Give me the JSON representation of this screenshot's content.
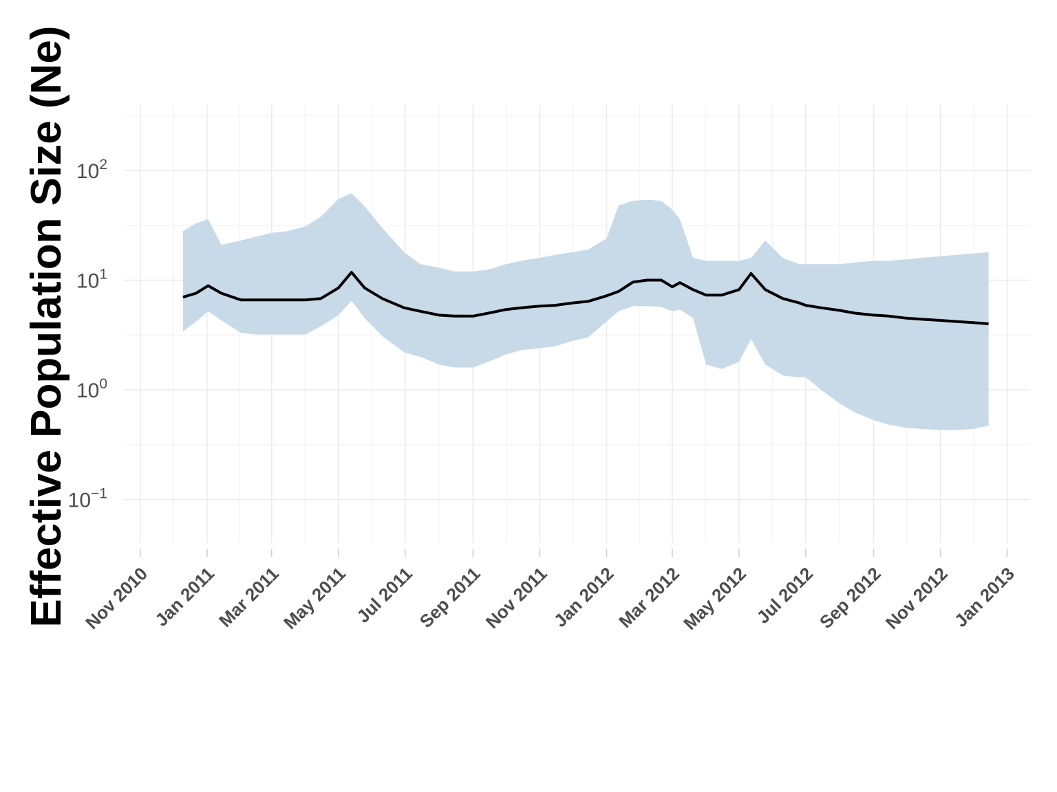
{
  "chart_data": {
    "type": "area",
    "title": "",
    "xlabel": "",
    "ylabel": "Effective Population Size (Ne)",
    "y_scale": "log10",
    "ylim": [
      0.04,
      400
    ],
    "xlim": [
      "2010-10-17",
      "2013-01-22"
    ],
    "grid": true,
    "legend": "none",
    "colors": {
      "ribbon": "#c8d9e8",
      "line": "#000000",
      "grid": "#ebebeb",
      "tick_text": "#4d4d4d"
    },
    "y_ticks": [
      {
        "base": "10",
        "exp": "2",
        "value": 100
      },
      {
        "base": "10",
        "exp": "1",
        "value": 10
      },
      {
        "base": "10",
        "exp": "0",
        "value": 1
      },
      {
        "base": "10",
        "exp": "−1",
        "value": 0.1
      }
    ],
    "x_ticks": [
      {
        "label": "Nov 2010",
        "date": "2010-11-01"
      },
      {
        "label": "Jan 2011",
        "date": "2011-01-01"
      },
      {
        "label": "Mar 2011",
        "date": "2011-03-01"
      },
      {
        "label": "May 2011",
        "date": "2011-05-01"
      },
      {
        "label": "Jul 2011",
        "date": "2011-07-01"
      },
      {
        "label": "Sep 2011",
        "date": "2011-09-01"
      },
      {
        "label": "Nov 2011",
        "date": "2011-11-01"
      },
      {
        "label": "Jan 2012",
        "date": "2012-01-01"
      },
      {
        "label": "Mar 2012",
        "date": "2012-03-01"
      },
      {
        "label": "May 2012",
        "date": "2012-05-01"
      },
      {
        "label": "Jul 2012",
        "date": "2012-07-01"
      },
      {
        "label": "Sep 2012",
        "date": "2012-09-01"
      },
      {
        "label": "Nov 2012",
        "date": "2012-11-01"
      },
      {
        "label": "Jan 2013",
        "date": "2013-01-01"
      }
    ],
    "series": [
      {
        "x": [
          "2010-12-10",
          "2010-12-22",
          "2011-01-02",
          "2011-01-14",
          "2011-02-01",
          "2011-02-15",
          "2011-03-01",
          "2011-03-15",
          "2011-04-01",
          "2011-04-15",
          "2011-05-01",
          "2011-05-13",
          "2011-05-25",
          "2011-06-10",
          "2011-06-30",
          "2011-07-15",
          "2011-08-01",
          "2011-08-15",
          "2011-09-01",
          "2011-09-15",
          "2011-10-01",
          "2011-10-15",
          "2011-11-01",
          "2011-11-15",
          "2011-12-01",
          "2011-12-15",
          "2012-01-01",
          "2012-01-12",
          "2012-01-25",
          "2012-02-07",
          "2012-02-20",
          "2012-03-01",
          "2012-03-08",
          "2012-03-20",
          "2012-04-01",
          "2012-04-15",
          "2012-05-01",
          "2012-05-12",
          "2012-05-25",
          "2012-06-10",
          "2012-06-25",
          "2012-07-01",
          "2012-07-15",
          "2012-08-01",
          "2012-08-15",
          "2012-09-01",
          "2012-09-15",
          "2012-10-01",
          "2012-10-15",
          "2012-11-01",
          "2012-11-15",
          "2012-12-01",
          "2012-12-15"
        ],
        "median": [
          7.0,
          7.6,
          8.9,
          7.6,
          6.6,
          6.6,
          6.6,
          6.6,
          6.6,
          6.8,
          8.5,
          11.8,
          8.5,
          6.8,
          5.6,
          5.2,
          4.8,
          4.7,
          4.7,
          5.0,
          5.4,
          5.6,
          5.8,
          5.9,
          6.2,
          6.4,
          7.2,
          7.9,
          9.6,
          10.0,
          10.0,
          8.7,
          9.5,
          8.2,
          7.3,
          7.3,
          8.2,
          11.5,
          8.2,
          6.8,
          6.2,
          5.9,
          5.6,
          5.3,
          5.0,
          4.8,
          4.7,
          4.5,
          4.4,
          4.3,
          4.2,
          4.1,
          4.0
        ],
        "lower": [
          3.4,
          4.2,
          5.2,
          4.3,
          3.3,
          3.2,
          3.2,
          3.2,
          3.2,
          3.8,
          4.8,
          6.5,
          4.5,
          3.1,
          2.2,
          2.0,
          1.7,
          1.6,
          1.6,
          1.8,
          2.1,
          2.3,
          2.4,
          2.5,
          2.8,
          3.0,
          4.2,
          5.2,
          5.8,
          5.8,
          5.7,
          5.2,
          5.4,
          4.5,
          1.7,
          1.55,
          1.8,
          2.9,
          1.7,
          1.35,
          1.3,
          1.3,
          1.0,
          0.75,
          0.62,
          0.53,
          0.48,
          0.45,
          0.44,
          0.43,
          0.43,
          0.44,
          0.47
        ],
        "upper": [
          28,
          33,
          36,
          21,
          23,
          25,
          27,
          28,
          31,
          38,
          55,
          62,
          47,
          30,
          18,
          14,
          13,
          12,
          12,
          12.5,
          14,
          15,
          16,
          17,
          18,
          19,
          24,
          48,
          53,
          54,
          53,
          44,
          36,
          16,
          15,
          15,
          15,
          16,
          23,
          16,
          14,
          14,
          14,
          14,
          14.5,
          15,
          15,
          15.5,
          16,
          16.5,
          17,
          17.5,
          18
        ]
      }
    ]
  }
}
